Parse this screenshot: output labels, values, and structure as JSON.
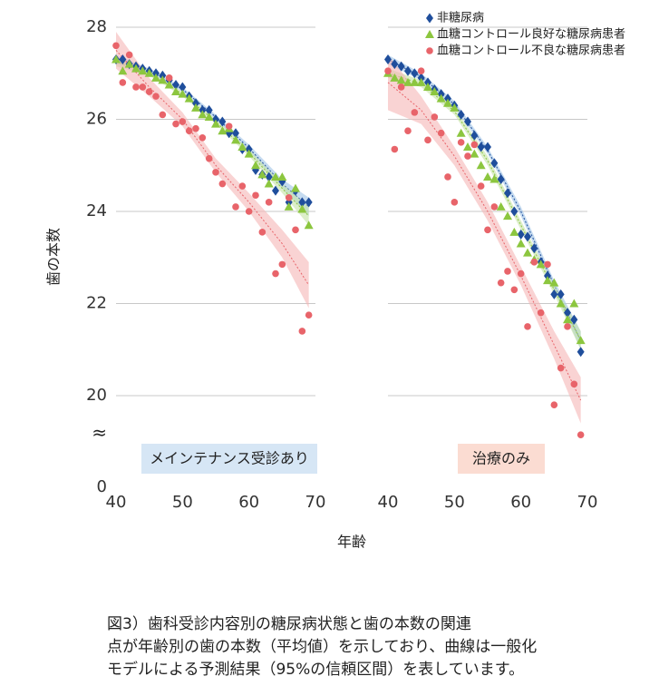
{
  "chart_data": [
    {
      "type": "scatter",
      "panel_label": "メインテナンス受診あり",
      "panel_label_color": "#d6e6f5",
      "y_label": "歯の本数",
      "x_label": "年齢",
      "x": [
        40,
        41,
        42,
        43,
        44,
        45,
        46,
        47,
        48,
        49,
        50,
        51,
        52,
        53,
        54,
        55,
        56,
        57,
        58,
        59,
        60,
        61,
        62,
        63,
        64,
        65,
        66,
        67,
        68,
        69
      ],
      "xlim": [
        40,
        70
      ],
      "xticks": [
        40,
        50,
        60,
        70
      ],
      "ylim": [
        0,
        28
      ],
      "yticks": [
        0,
        20,
        22,
        24,
        26,
        28
      ],
      "axis_break": true,
      "show_ytick_labels": true,
      "grid": true,
      "fit_x": [
        40,
        45,
        50,
        55,
        60,
        65,
        69
      ],
      "series": [
        {
          "name": "非糖尿病",
          "color": "#1f4e9c",
          "marker": "diamond",
          "values": [
            27.3,
            27.3,
            27.2,
            27.15,
            27.1,
            27.05,
            27.0,
            26.95,
            26.85,
            26.75,
            26.7,
            26.5,
            26.35,
            26.2,
            26.2,
            26.0,
            25.95,
            25.7,
            25.7,
            25.35,
            25.35,
            24.9,
            24.8,
            24.75,
            24.45,
            24.65,
            24.2,
            24.45,
            24.2,
            24.2
          ],
          "fit_lower": [
            27.2,
            27.0,
            26.6,
            26.0,
            25.3,
            24.5,
            23.9
          ],
          "fit_upper": [
            27.4,
            27.1,
            26.7,
            26.1,
            25.45,
            24.7,
            24.3
          ],
          "band_color": "#9ec3e6"
        },
        {
          "name": "血糖コントロール良好な糖尿病患者",
          "color": "#8cc63f",
          "marker": "triangle",
          "values": [
            27.3,
            27.05,
            27.2,
            27.1,
            27.05,
            27.0,
            26.9,
            26.85,
            26.75,
            26.6,
            26.55,
            26.45,
            26.25,
            26.1,
            26.05,
            25.9,
            25.75,
            25.8,
            25.55,
            25.4,
            25.25,
            25.0,
            24.8,
            24.6,
            24.75,
            24.75,
            24.1,
            24.5,
            24.05,
            23.7
          ],
          "fit_lower": [
            27.15,
            26.95,
            26.5,
            25.9,
            25.2,
            24.4,
            23.7
          ],
          "fit_upper": [
            27.35,
            27.05,
            26.6,
            26.0,
            25.35,
            24.6,
            24.1
          ],
          "band_color": "#c5e3a5"
        },
        {
          "name": "血糖コントロール不良な糖尿病患者",
          "color": "#e8646a",
          "marker": "circle",
          "values": [
            27.6,
            26.8,
            27.4,
            26.7,
            26.7,
            26.6,
            26.5,
            26.1,
            26.9,
            25.9,
            25.95,
            25.75,
            25.8,
            25.6,
            25.15,
            24.85,
            24.6,
            25.85,
            24.1,
            24.55,
            24.0,
            24.35,
            23.55,
            24.2,
            22.65,
            22.85,
            24.3,
            23.6,
            21.4,
            21.75
          ],
          "fit_lower": [
            27.1,
            26.5,
            25.85,
            24.85,
            24.0,
            23.0,
            21.9
          ],
          "fit_upper": [
            27.9,
            26.9,
            26.15,
            25.15,
            24.4,
            23.6,
            22.9
          ],
          "band_color": "#f5b5b5"
        }
      ]
    },
    {
      "type": "scatter",
      "panel_label": "治療のみ",
      "panel_label_color": "#fbdcd2",
      "x": [
        40,
        41,
        42,
        43,
        44,
        45,
        46,
        47,
        48,
        49,
        50,
        51,
        52,
        53,
        54,
        55,
        56,
        57,
        58,
        59,
        60,
        61,
        62,
        63,
        64,
        65,
        66,
        67,
        68,
        69
      ],
      "xlim": [
        40,
        70
      ],
      "xticks": [
        40,
        50,
        60,
        70
      ],
      "ylim": [
        0,
        28
      ],
      "yticks": [
        0,
        20,
        22,
        24,
        26,
        28
      ],
      "axis_break": true,
      "show_ytick_labels": false,
      "grid": true,
      "fit_x": [
        40,
        45,
        50,
        55,
        60,
        65,
        69
      ],
      "series": [
        {
          "name": "非糖尿病",
          "color": "#1f4e9c",
          "marker": "diamond",
          "values": [
            27.3,
            27.2,
            27.15,
            27.05,
            27.0,
            26.9,
            26.8,
            26.65,
            26.55,
            26.45,
            26.3,
            26.1,
            25.95,
            25.65,
            25.4,
            25.4,
            25.05,
            24.7,
            24.4,
            24.0,
            23.5,
            23.45,
            23.2,
            22.9,
            22.6,
            22.2,
            22.2,
            21.8,
            21.65,
            20.95
          ],
          "fit_lower": [
            27.2,
            26.85,
            26.25,
            25.25,
            23.9,
            22.3,
            21.0
          ],
          "fit_upper": [
            27.4,
            27.0,
            26.4,
            25.4,
            24.1,
            22.5,
            21.4
          ],
          "band_color": "#9ec3e6"
        },
        {
          "name": "血糖コントロール良好な糖尿病患者",
          "color": "#8cc63f",
          "marker": "triangle",
          "values": [
            27.0,
            26.9,
            26.85,
            26.8,
            26.8,
            26.8,
            26.7,
            26.6,
            26.45,
            26.35,
            26.25,
            25.7,
            25.4,
            25.25,
            25.0,
            24.75,
            24.7,
            24.1,
            23.9,
            23.55,
            23.3,
            23.1,
            22.95,
            22.85,
            22.5,
            22.45,
            22.0,
            21.65,
            22.0,
            21.2
          ],
          "fit_lower": [
            26.9,
            26.7,
            26.1,
            25.0,
            23.6,
            22.2,
            21.0
          ],
          "fit_upper": [
            27.1,
            26.85,
            26.25,
            25.2,
            23.8,
            22.4,
            21.4
          ],
          "band_color": "#c5e3a5"
        },
        {
          "name": "血糖コントロール不良な糖尿病患者",
          "color": "#e8646a",
          "marker": "circle",
          "values": [
            27.05,
            25.35,
            26.7,
            25.75,
            26.15,
            27.05,
            25.55,
            26.05,
            25.7,
            24.75,
            24.2,
            25.5,
            25.2,
            25.45,
            24.55,
            23.6,
            24.1,
            22.45,
            22.7,
            22.3,
            22.65,
            21.5,
            22.9,
            21.8,
            22.85,
            19.8,
            20.6,
            21.5,
            20.25,
            19.15
          ],
          "fit_lower": [
            26.2,
            25.9,
            25.0,
            23.8,
            22.4,
            20.8,
            19.4
          ],
          "fit_upper": [
            27.4,
            26.5,
            25.4,
            24.2,
            22.8,
            21.4,
            20.4
          ],
          "band_color": "#f5b5b5"
        }
      ]
    }
  ],
  "caption": [
    "図3）歯科受診内容別の糖尿病状態と歯の本数の関連",
    "点が年齢別の歯の本数（平均値）を示しており、曲線は一般化",
    "モデルによる予測結果（95%の信頼区間）を表しています。"
  ]
}
